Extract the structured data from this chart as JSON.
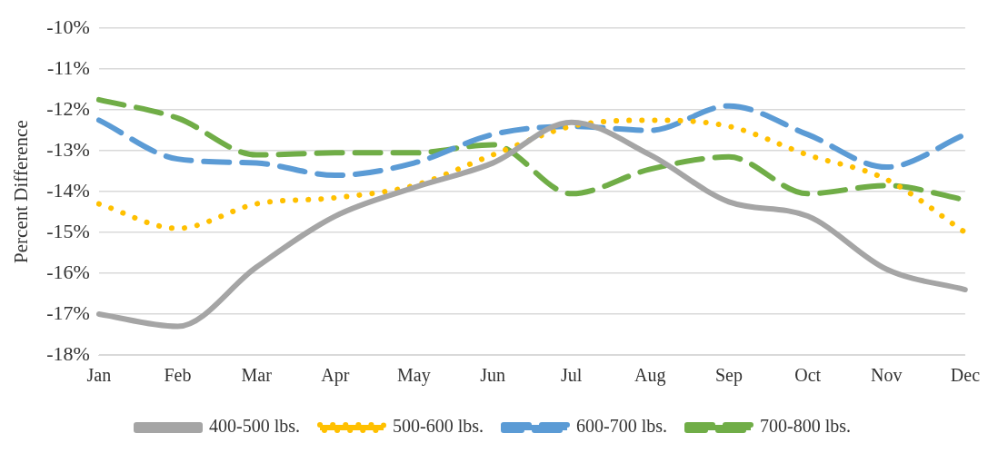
{
  "chart_data": {
    "type": "line",
    "ylabel": "Percent Difference",
    "categories": [
      "Jan",
      "Feb",
      "Mar",
      "Apr",
      "May",
      "Jun",
      "Jul",
      "Aug",
      "Sep",
      "Oct",
      "Nov",
      "Dec"
    ],
    "series": [
      {
        "name": "400-500 lbs.",
        "color": "#a5a5a5",
        "line_style": "solid",
        "values": [
          -17.0,
          -17.3,
          -15.85,
          -14.6,
          -13.9,
          -13.3,
          -12.3,
          -13.1,
          -14.25,
          -14.6,
          -15.9,
          -16.4
        ]
      },
      {
        "name": "500-600 lbs.",
        "color": "#ffc000",
        "line_style": "dotted",
        "values": [
          -14.3,
          -14.9,
          -14.3,
          -14.15,
          -13.85,
          -13.1,
          -12.4,
          -12.25,
          -12.4,
          -13.1,
          -13.7,
          -15.0
        ]
      },
      {
        "name": "600-700 lbs.",
        "color": "#5b9bd5",
        "line_style": "dashed",
        "values": [
          -12.25,
          -13.2,
          -13.3,
          -13.6,
          -13.3,
          -12.6,
          -12.4,
          -12.5,
          -11.9,
          -12.6,
          -13.4,
          -12.6
        ]
      },
      {
        "name": "700-800 lbs.",
        "color": "#70ad47",
        "line_style": "dashed",
        "values": [
          -11.75,
          -12.2,
          -13.1,
          -13.05,
          -13.05,
          -12.85,
          -14.05,
          -13.45,
          -13.15,
          -14.05,
          -13.85,
          -14.2
        ]
      }
    ],
    "ylim": [
      -18,
      -10
    ],
    "yticks": [
      {
        "value": -18,
        "label": "-18%"
      },
      {
        "value": -17,
        "label": "-17%"
      },
      {
        "value": -16,
        "label": "-16%"
      },
      {
        "value": -15,
        "label": "-15%"
      },
      {
        "value": -14,
        "label": "-14%"
      },
      {
        "value": -13,
        "label": "-13%"
      },
      {
        "value": -12,
        "label": "-12%"
      },
      {
        "value": -11,
        "label": "-11%"
      },
      {
        "value": -10,
        "label": "-10%"
      }
    ],
    "grid": "y",
    "legend": "bottom",
    "marker": "none"
  }
}
